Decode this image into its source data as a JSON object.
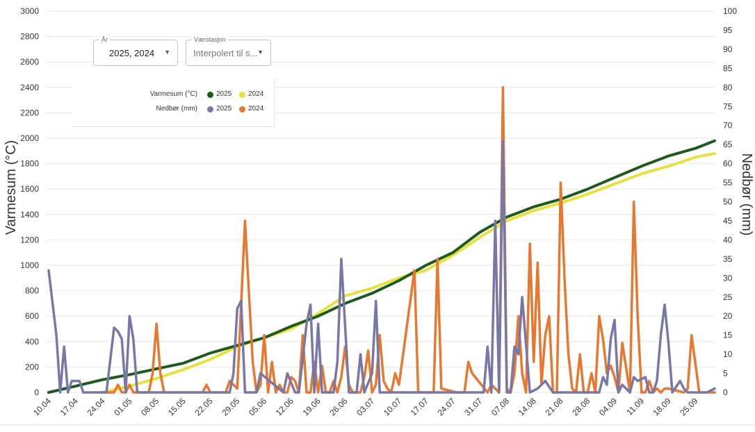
{
  "controls": {
    "year": {
      "label": "År",
      "value": "2025, 2024"
    },
    "station": {
      "label": "Værstasjon",
      "value": "Interpolert til s..."
    }
  },
  "legend": {
    "rows": [
      {
        "name": "Varmesum (°C)",
        "items": [
          {
            "label": "2025",
            "color": "#1e5a1e"
          },
          {
            "label": "2024",
            "color": "#e6e13c"
          }
        ]
      },
      {
        "name": "Nedbør (mm)",
        "items": [
          {
            "label": "2025",
            "color": "#7777a8"
          },
          {
            "label": "2024",
            "color": "#e8782f"
          }
        ]
      }
    ]
  },
  "chart_data": {
    "type": "line",
    "ylabel_left": "Varmesum (°C)",
    "ylabel_right": "Nedbør (mm)",
    "ylim_left": [
      0,
      3000
    ],
    "ylim_right": [
      0,
      100
    ],
    "yticks_left": [
      "0",
      "200",
      "400",
      "600",
      "800",
      "1000",
      "1200",
      "1400",
      "1600",
      "1800",
      "2000",
      "2200",
      "2400",
      "2600",
      "2800",
      "3000"
    ],
    "yticks_right": [
      "0",
      "5",
      "10",
      "15",
      "20",
      "25",
      "30",
      "35",
      "40",
      "45",
      "50",
      "55",
      "60",
      "65",
      "70",
      "75",
      "80",
      "85",
      "90",
      "95",
      "100"
    ],
    "x_start": "10.04",
    "x_end": "30.09",
    "xtick_labels": [
      "10.04",
      "17.04",
      "24.04",
      "01.05",
      "08.05",
      "15.05",
      "22.05",
      "29.05",
      "05.06",
      "12.06",
      "19.06",
      "26.06",
      "03.07",
      "10.07",
      "17.07",
      "24.07",
      "31.07",
      "07.08",
      "14.08",
      "21.08",
      "28.08",
      "04.09",
      "11.09",
      "18.09",
      "25.09"
    ],
    "series": [
      {
        "name": "2025",
        "group": "Varmesum (°C)",
        "axis": "left",
        "color": "#1e5a1e",
        "x": [
          "10.04",
          "17.04",
          "24.04",
          "01.05",
          "08.05",
          "15.05",
          "22.05",
          "29.05",
          "05.06",
          "12.06",
          "19.06",
          "26.06",
          "03.07",
          "10.07",
          "17.07",
          "24.07",
          "31.07",
          "07.08",
          "14.08",
          "21.08",
          "28.08",
          "04.09",
          "11.09",
          "18.09",
          "25.09",
          "30.09"
        ],
        "y": [
          0,
          50,
          100,
          140,
          185,
          230,
          310,
          370,
          430,
          520,
          600,
          700,
          780,
          880,
          1000,
          1100,
          1260,
          1380,
          1460,
          1520,
          1600,
          1690,
          1780,
          1860,
          1920,
          1980
        ]
      },
      {
        "name": "2024",
        "group": "Varmesum (°C)",
        "axis": "left",
        "color": "#e6e13c",
        "x": [
          "24.04",
          "01.05",
          "08.05",
          "15.05",
          "22.05",
          "29.05",
          "05.06",
          "12.06",
          "19.06",
          "26.06",
          "03.07",
          "10.07",
          "17.07",
          "24.07",
          "31.07",
          "07.08",
          "14.08",
          "21.08",
          "28.08",
          "04.09",
          "11.09",
          "18.09",
          "25.09",
          "30.09"
        ],
        "y": [
          0,
          50,
          110,
          180,
          260,
          360,
          430,
          500,
          620,
          760,
          820,
          900,
          960,
          1080,
          1220,
          1350,
          1430,
          1490,
          1560,
          1640,
          1720,
          1780,
          1850,
          1880
        ]
      },
      {
        "name": "2025",
        "group": "Nedbør (mm)",
        "axis": "right",
        "color": "#7777a8",
        "x": [
          "10.04",
          "12.04",
          "13.04",
          "14.04",
          "15.04",
          "16.04",
          "18.04",
          "19.04",
          "25.04",
          "27.04",
          "28.04",
          "29.04",
          "30.04",
          "01.05",
          "02.05",
          "03.05",
          "04.05",
          "05.05",
          "07.05",
          "20.05",
          "27.05",
          "28.05",
          "29.05",
          "30.05",
          "31.05",
          "01.06",
          "02.06",
          "03.06",
          "04.06",
          "10.06",
          "11.06",
          "13.06",
          "14.06",
          "16.06",
          "17.06",
          "18.06",
          "19.06",
          "20.06",
          "22.06",
          "23.06",
          "24.06",
          "25.06",
          "27.06",
          "28.06",
          "29.06",
          "30.06",
          "01.07",
          "03.07",
          "04.07",
          "05.07",
          "06.07",
          "07.07",
          "09.07",
          "15.07",
          "29.07",
          "01.08",
          "02.08",
          "03.08",
          "04.08",
          "05.08",
          "06.08",
          "07.08",
          "08.08",
          "09.08",
          "10.08",
          "11.08",
          "13.08",
          "15.08",
          "17.08",
          "19.08",
          "21.08",
          "24.08",
          "26.08",
          "31.08",
          "01.09",
          "02.09",
          "03.09",
          "04.09",
          "05.09",
          "06.09",
          "08.09",
          "09.09",
          "10.09",
          "12.09",
          "13.09",
          "14.09",
          "15.09",
          "16.09",
          "17.09",
          "18.09",
          "19.09",
          "21.09",
          "22.09",
          "23.09",
          "28.09",
          "30.09"
        ],
        "y": [
          32,
          15,
          0,
          12,
          0,
          3,
          3,
          0,
          0,
          17,
          16,
          14,
          0,
          20,
          14,
          0,
          0,
          0,
          0,
          0,
          0,
          5,
          22,
          24,
          0,
          0,
          0,
          0,
          5,
          0,
          5,
          0,
          0,
          18,
          23,
          0,
          18,
          0,
          0,
          0,
          8,
          35,
          0,
          0,
          0,
          10,
          0,
          5,
          24,
          0,
          0,
          0,
          0,
          0,
          0,
          0,
          12,
          0,
          45,
          0,
          66,
          0,
          0,
          12,
          10,
          25,
          0,
          1,
          3,
          0,
          0,
          0,
          0,
          0,
          4,
          2,
          14,
          19,
          0,
          2,
          0,
          4,
          3,
          4,
          0,
          0,
          3,
          15,
          23,
          13,
          0,
          3,
          1,
          0,
          0,
          1
        ]
      },
      {
        "name": "2024",
        "group": "Nedbør (mm)",
        "axis": "right",
        "color": "#e8782f",
        "x": [
          "24.04",
          "27.04",
          "28.04",
          "29.04",
          "30.04",
          "01.05",
          "02.05",
          "06.05",
          "07.05",
          "08.05",
          "09.05",
          "10.05",
          "20.05",
          "21.05",
          "22.05",
          "26.05",
          "27.05",
          "29.05",
          "31.05",
          "02.06",
          "03.06",
          "04.06",
          "05.06",
          "06.06",
          "07.06",
          "08.06",
          "09.06",
          "10.06",
          "11.06",
          "12.06",
          "13.06",
          "14.06",
          "15.06",
          "16.06",
          "17.06",
          "18.06",
          "19.06",
          "20.06",
          "21.06",
          "22.06",
          "23.06",
          "24.06",
          "25.06",
          "26.06",
          "27.06",
          "28.06",
          "29.06",
          "30.06",
          "01.07",
          "02.07",
          "03.07",
          "04.07",
          "05.07",
          "06.07",
          "07.07",
          "08.07",
          "09.07",
          "10.07",
          "14.07",
          "15.07",
          "19.07",
          "20.07",
          "21.07",
          "25.07",
          "26.07",
          "27.07",
          "28.07",
          "29.07",
          "02.08",
          "03.08",
          "04.08",
          "05.08",
          "06.08",
          "07.08",
          "08.08",
          "09.08",
          "10.08",
          "11.08",
          "12.08",
          "13.08",
          "14.08",
          "15.08",
          "16.08",
          "17.08",
          "18.08",
          "19.08",
          "20.08",
          "21.08",
          "22.08",
          "23.08",
          "24.08",
          "25.08",
          "26.08",
          "27.08",
          "28.08",
          "29.08",
          "30.08",
          "31.08",
          "01.09",
          "02.09",
          "03.09",
          "04.09",
          "05.09",
          "06.09",
          "08.09",
          "09.09",
          "10.09",
          "11.09",
          "12.09",
          "13.09",
          "14.09",
          "15.09",
          "16.09",
          "17.09",
          "18.09",
          "22.09",
          "23.09",
          "24.09",
          "26.09",
          "27.09",
          "28.09",
          "29.09",
          "30.09"
        ],
        "y": [
          0,
          0,
          2,
          0,
          0,
          2,
          0,
          0,
          5,
          18,
          5,
          0,
          0,
          2,
          0,
          0,
          3,
          1,
          45,
          8,
          0,
          2,
          15,
          0,
          8,
          0,
          2,
          0,
          0,
          4,
          3,
          0,
          15,
          0,
          0,
          8,
          0,
          7,
          0,
          0,
          3,
          0,
          4,
          12,
          2,
          0,
          0,
          0,
          4,
          11,
          0,
          2,
          15,
          3,
          1,
          0,
          5,
          2,
          32,
          0,
          0,
          35,
          1,
          0,
          0,
          0,
          8,
          5,
          0,
          2,
          1,
          0,
          80,
          1,
          0,
          5,
          20,
          5,
          0,
          39,
          8,
          34,
          2,
          15,
          20,
          0,
          0,
          55,
          30,
          10,
          1,
          0,
          10,
          0,
          0,
          5,
          0,
          20,
          14,
          5,
          7,
          4,
          0,
          13,
          0,
          50,
          20,
          0,
          0,
          3,
          0,
          1,
          0,
          1,
          1,
          0,
          1,
          15,
          0,
          0,
          0,
          0,
          0
        ]
      }
    ]
  }
}
